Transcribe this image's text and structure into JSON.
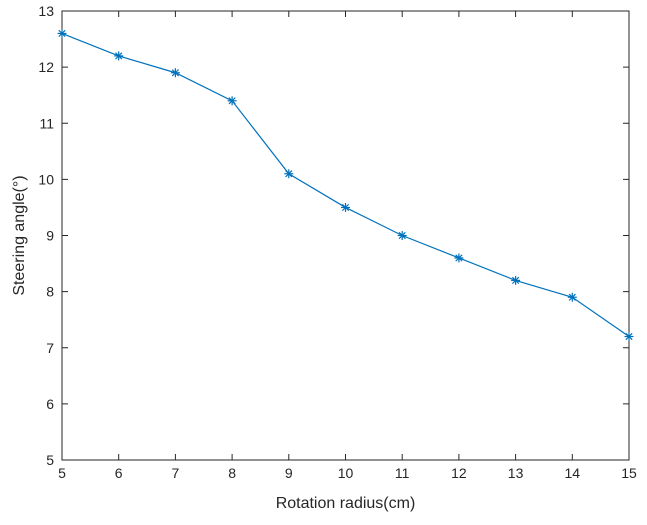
{
  "chart_data": {
    "type": "line",
    "xlabel": "Rotation radius(cm)",
    "ylabel": "Steering angle(°)",
    "xlim": [
      5,
      15
    ],
    "ylim": [
      5,
      13
    ],
    "xticks": [
      5,
      6,
      7,
      8,
      9,
      10,
      11,
      12,
      13,
      14,
      15
    ],
    "yticks": [
      5,
      6,
      7,
      8,
      9,
      10,
      11,
      12,
      13
    ],
    "grid": false,
    "series": [
      {
        "marker": "asterisk",
        "color": "#0072BD",
        "x": [
          5,
          6,
          7,
          8,
          9,
          10,
          11,
          12,
          13,
          14,
          15
        ],
        "y": [
          12.6,
          12.2,
          11.9,
          11.4,
          10.1,
          9.5,
          9.0,
          8.6,
          8.2,
          7.9,
          7.2
        ]
      }
    ]
  }
}
